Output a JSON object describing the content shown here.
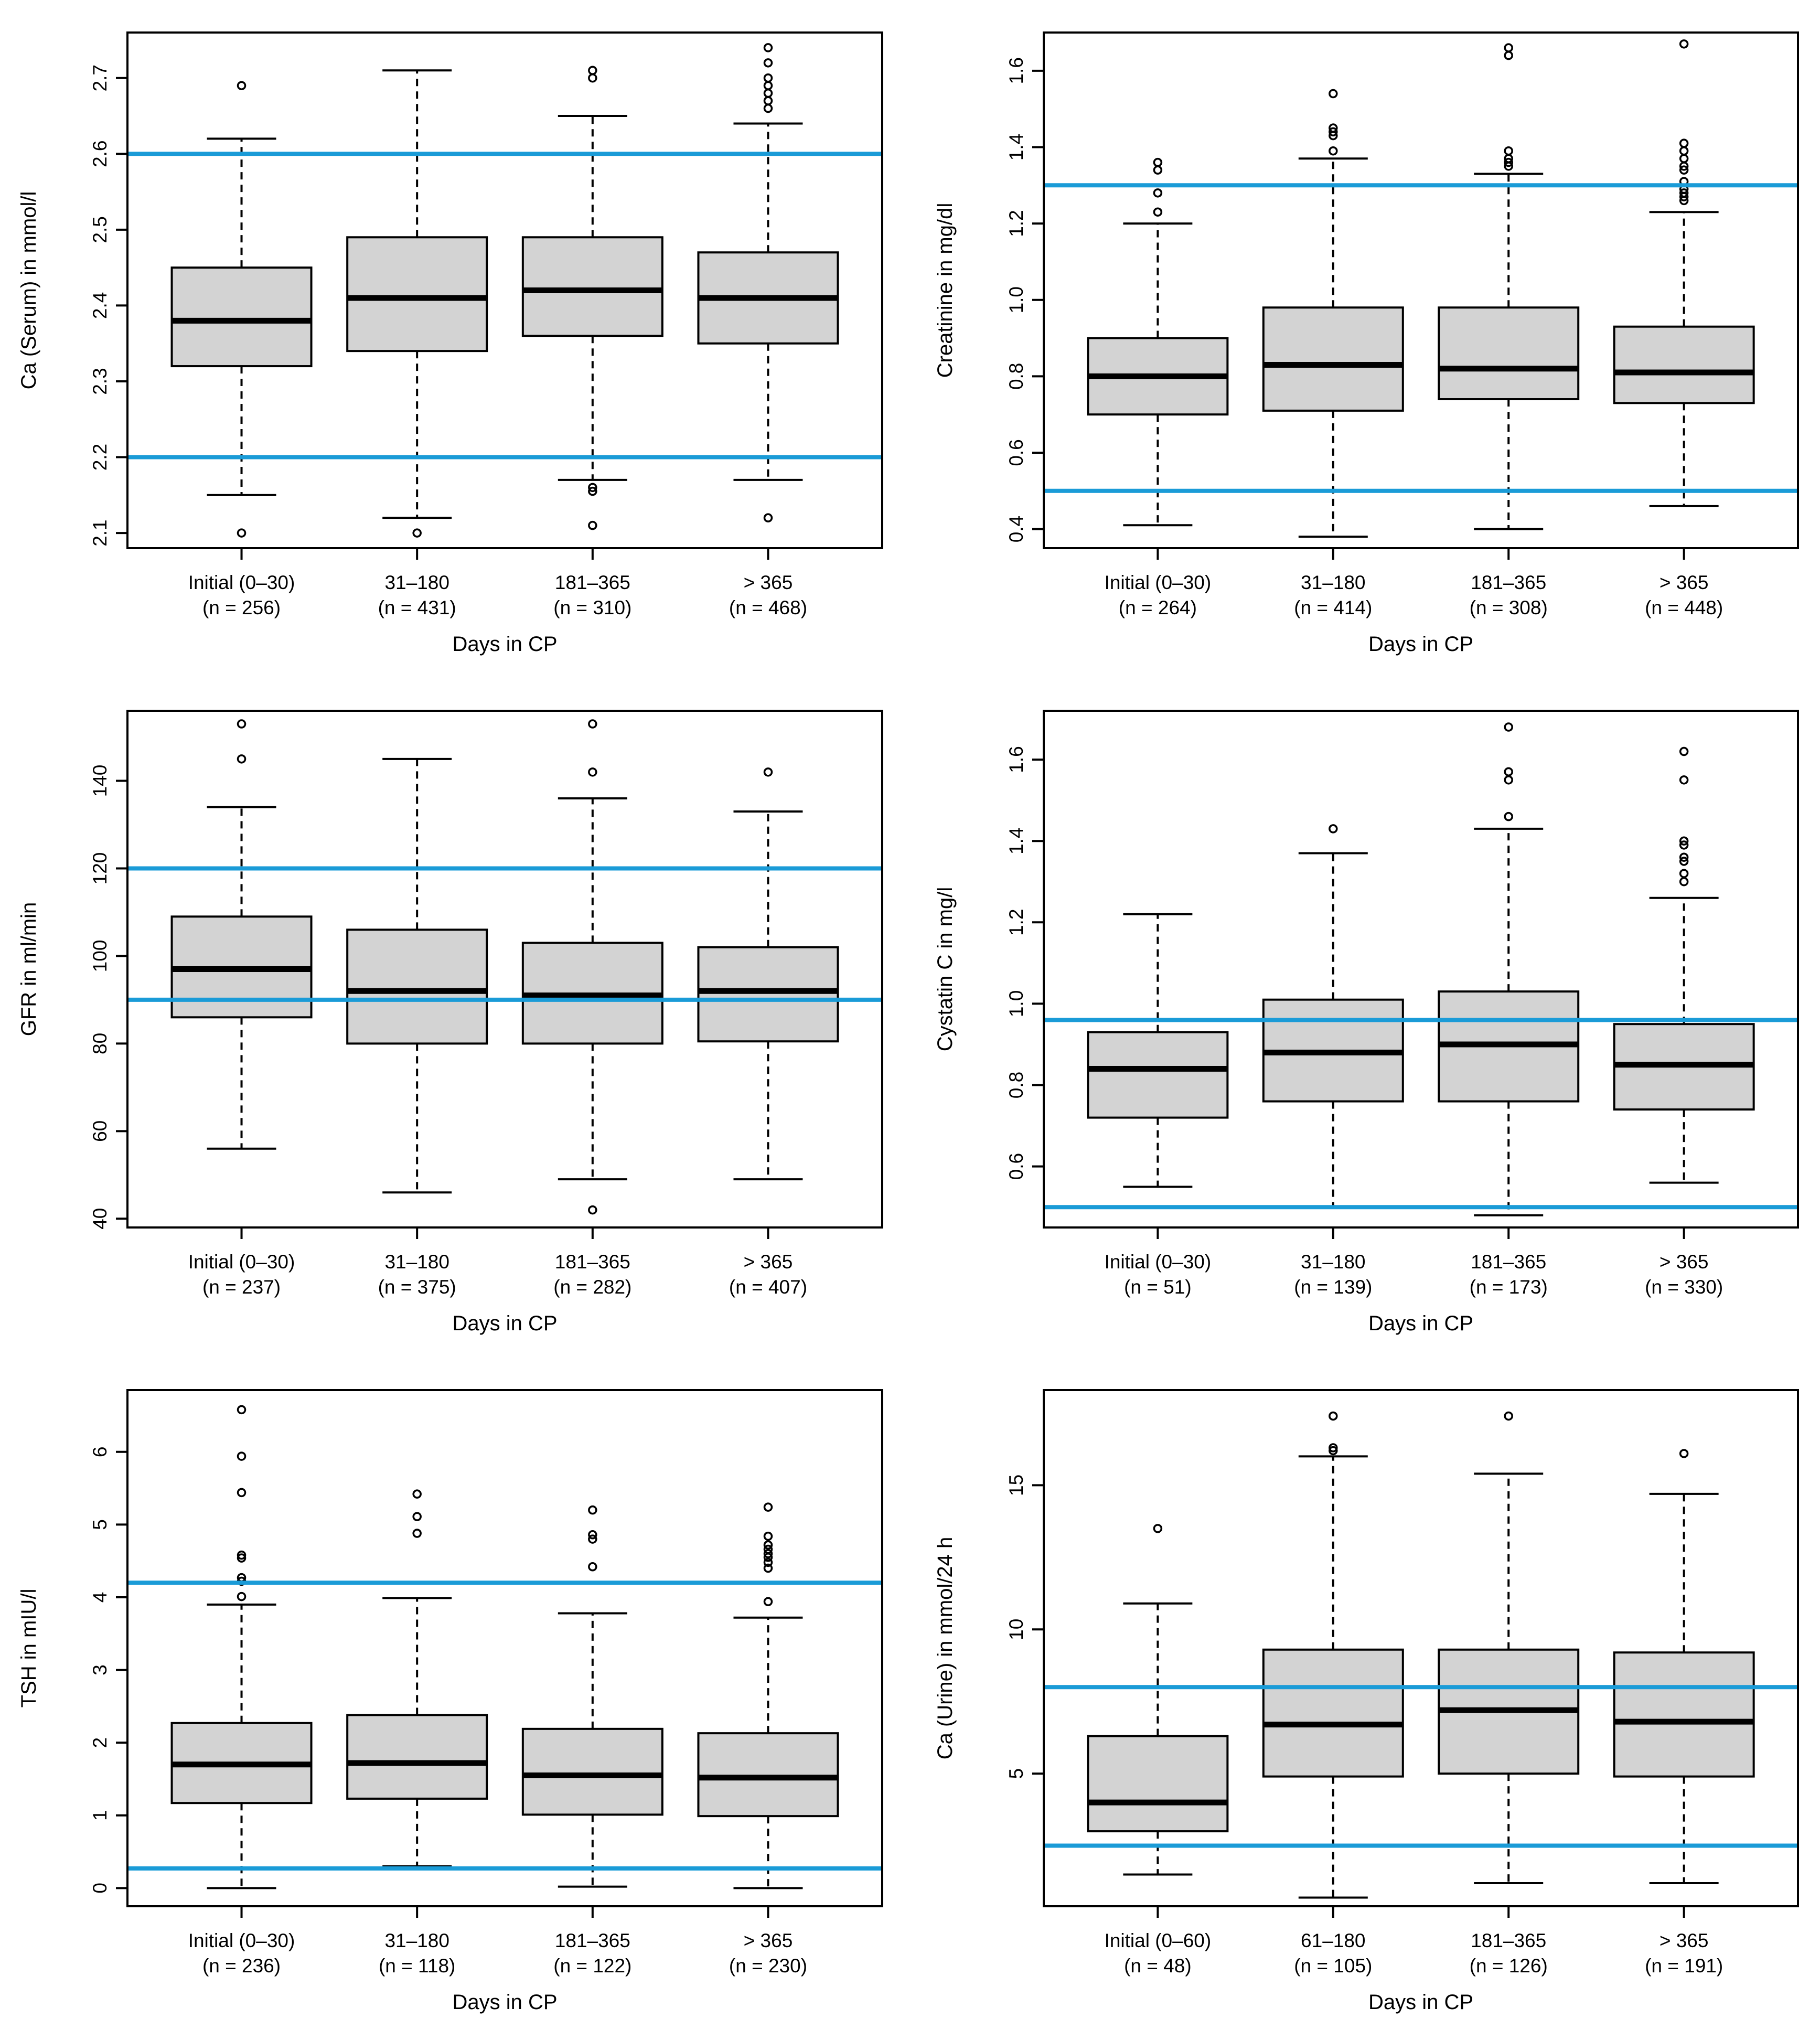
{
  "figure": {
    "colors": {
      "box_fill": "#d3d3d3",
      "box_stroke": "#000000",
      "ref_line": "#1a9bd7",
      "axis": "#000000"
    }
  },
  "chart_data": [
    {
      "type": "boxplot",
      "position": "top-left",
      "title": "",
      "xlabel": "Days in CP",
      "ylabel": "Ca (Serum) in mmol/l",
      "ylim": [
        2.08,
        2.76
      ],
      "yticks": [
        2.1,
        2.2,
        2.3,
        2.4,
        2.5,
        2.6,
        2.7
      ],
      "ytick_labels": [
        "2.1",
        "2.2",
        "2.3",
        "2.4",
        "2.5",
        "2.6",
        "2.7"
      ],
      "categories": [
        {
          "label": "Initial (0–30)",
          "n": "(n = 256)"
        },
        {
          "label": "31–180",
          "n": "(n = 431)"
        },
        {
          "label": "181–365",
          "n": "(n = 310)"
        },
        {
          "label": "> 365",
          "n": "(n = 468)"
        }
      ],
      "boxes": [
        {
          "whislo": 2.15,
          "q1": 2.32,
          "med": 2.38,
          "q3": 2.45,
          "whishi": 2.62,
          "fliers": [
            2.69,
            2.1
          ]
        },
        {
          "whislo": 2.12,
          "q1": 2.34,
          "med": 2.41,
          "q3": 2.49,
          "whishi": 2.71,
          "fliers": [
            2.1
          ]
        },
        {
          "whislo": 2.17,
          "q1": 2.36,
          "med": 2.42,
          "q3": 2.49,
          "whishi": 2.65,
          "fliers": [
            2.71,
            2.7,
            2.16,
            2.155,
            2.11
          ]
        },
        {
          "whislo": 2.17,
          "q1": 2.35,
          "med": 2.41,
          "q3": 2.47,
          "whishi": 2.64,
          "fliers": [
            2.74,
            2.72,
            2.7,
            2.69,
            2.68,
            2.67,
            2.66,
            2.12
          ]
        }
      ],
      "reference_lines": [
        2.2,
        2.6
      ]
    },
    {
      "type": "boxplot",
      "position": "top-right",
      "title": "",
      "xlabel": "Days in CP",
      "ylabel": "Creatinine in mg/dl",
      "ylim": [
        0.35,
        1.7
      ],
      "yticks": [
        0.4,
        0.6,
        0.8,
        1.0,
        1.2,
        1.4,
        1.6
      ],
      "ytick_labels": [
        "0.4",
        "0.6",
        "0.8",
        "1.0",
        "1.2",
        "1.4",
        "1.6"
      ],
      "categories": [
        {
          "label": "Initial (0–30)",
          "n": "(n = 264)"
        },
        {
          "label": "31–180",
          "n": "(n = 414)"
        },
        {
          "label": "181–365",
          "n": "(n = 308)"
        },
        {
          "label": "> 365",
          "n": "(n = 448)"
        }
      ],
      "boxes": [
        {
          "whislo": 0.41,
          "q1": 0.7,
          "med": 0.8,
          "q3": 0.9,
          "whishi": 1.2,
          "fliers": [
            1.36,
            1.34,
            1.28,
            1.23
          ]
        },
        {
          "whislo": 0.38,
          "q1": 0.71,
          "med": 0.83,
          "q3": 0.98,
          "whishi": 1.37,
          "fliers": [
            1.54,
            1.45,
            1.44,
            1.43,
            1.39
          ]
        },
        {
          "whislo": 0.4,
          "q1": 0.74,
          "med": 0.82,
          "q3": 0.98,
          "whishi": 1.33,
          "fliers": [
            1.66,
            1.64,
            1.39,
            1.37,
            1.36,
            1.35
          ]
        },
        {
          "whislo": 0.46,
          "q1": 0.73,
          "med": 0.81,
          "q3": 0.93,
          "whishi": 1.23,
          "fliers": [
            1.67,
            1.35,
            1.34,
            1.31,
            1.29,
            1.28,
            1.27,
            1.26,
            1.41,
            1.39,
            1.37
          ]
        }
      ],
      "reference_lines": [
        0.5,
        1.3
      ]
    },
    {
      "type": "boxplot",
      "position": "middle-left",
      "title": "",
      "xlabel": "Days in CP",
      "ylabel": "GFR in ml/min",
      "ylim": [
        38,
        156
      ],
      "yticks": [
        40,
        60,
        80,
        100,
        120,
        140
      ],
      "ytick_labels": [
        "40",
        "60",
        "80",
        "100",
        "120",
        "140"
      ],
      "categories": [
        {
          "label": "Initial (0–30)",
          "n": "(n = 237)"
        },
        {
          "label": "31–180",
          "n": "(n = 375)"
        },
        {
          "label": "181–365",
          "n": "(n = 282)"
        },
        {
          "label": "> 365",
          "n": "(n = 407)"
        }
      ],
      "boxes": [
        {
          "whislo": 56,
          "q1": 86,
          "med": 97,
          "q3": 109,
          "whishi": 134,
          "fliers": [
            153,
            145
          ]
        },
        {
          "whislo": 46,
          "q1": 80,
          "med": 92,
          "q3": 106,
          "whishi": 145,
          "fliers": []
        },
        {
          "whislo": 49,
          "q1": 80,
          "med": 91,
          "q3": 103,
          "whishi": 136,
          "fliers": [
            153,
            142,
            42
          ]
        },
        {
          "whislo": 49,
          "q1": 80.5,
          "med": 92,
          "q3": 102,
          "whishi": 133,
          "fliers": [
            142
          ]
        }
      ],
      "reference_lines": [
        90,
        120
      ]
    },
    {
      "type": "boxplot",
      "position": "middle-right",
      "title": "",
      "xlabel": "Days in CP",
      "ylabel": "Cystatin C in mg/l",
      "ylim": [
        0.45,
        1.72
      ],
      "yticks": [
        0.6,
        0.8,
        1.0,
        1.2,
        1.4,
        1.6
      ],
      "ytick_labels": [
        "0.6",
        "0.8",
        "1.0",
        "1.2",
        "1.4",
        "1.6"
      ],
      "categories": [
        {
          "label": "Initial (0–30)",
          "n": "(n = 51)"
        },
        {
          "label": "31–180",
          "n": "(n = 139)"
        },
        {
          "label": "181–365",
          "n": "(n = 173)"
        },
        {
          "label": "> 365",
          "n": "(n = 330)"
        }
      ],
      "boxes": [
        {
          "whislo": 0.55,
          "q1": 0.72,
          "med": 0.84,
          "q3": 0.93,
          "whishi": 1.22,
          "fliers": []
        },
        {
          "whislo": 0.5,
          "q1": 0.76,
          "med": 0.88,
          "q3": 1.01,
          "whishi": 1.37,
          "fliers": [
            1.43
          ]
        },
        {
          "whislo": 0.48,
          "q1": 0.76,
          "med": 0.9,
          "q3": 1.03,
          "whishi": 1.43,
          "fliers": [
            1.68,
            1.57,
            1.55,
            1.46
          ]
        },
        {
          "whislo": 0.56,
          "q1": 0.74,
          "med": 0.85,
          "q3": 0.95,
          "whishi": 1.26,
          "fliers": [
            1.62,
            1.55,
            1.4,
            1.39,
            1.36,
            1.35,
            1.32,
            1.3
          ]
        }
      ],
      "reference_lines": [
        0.5,
        0.96
      ]
    },
    {
      "type": "boxplot",
      "position": "bottom-left",
      "title": "",
      "xlabel": "Days in CP",
      "ylabel": "TSH in mIU/l",
      "ylim": [
        -0.25,
        6.85
      ],
      "yticks": [
        0,
        1,
        2,
        3,
        4,
        5,
        6
      ],
      "ytick_labels": [
        "0",
        "1",
        "2",
        "3",
        "4",
        "5",
        "6"
      ],
      "categories": [
        {
          "label": "Initial (0–30)",
          "n": "(n = 236)"
        },
        {
          "label": "31–180",
          "n": "(n = 118)"
        },
        {
          "label": "181–365",
          "n": "(n = 122)"
        },
        {
          "label": "> 365",
          "n": "(n = 230)"
        }
      ],
      "boxes": [
        {
          "whislo": 0.0,
          "q1": 1.17,
          "med": 1.7,
          "q3": 2.27,
          "whishi": 3.9,
          "fliers": [
            6.58,
            5.94,
            5.44,
            4.58,
            4.54,
            4.27,
            4.22,
            4.01
          ]
        },
        {
          "whislo": 0.3,
          "q1": 1.23,
          "med": 1.72,
          "q3": 2.38,
          "whishi": 3.99,
          "fliers": [
            5.42,
            5.11,
            4.88
          ]
        },
        {
          "whislo": 0.02,
          "q1": 1.01,
          "med": 1.55,
          "q3": 2.19,
          "whishi": 3.78,
          "fliers": [
            5.2,
            4.86,
            4.8,
            4.42
          ]
        },
        {
          "whislo": 0.0,
          "q1": 0.99,
          "med": 1.52,
          "q3": 2.13,
          "whishi": 3.72,
          "fliers": [
            5.24,
            4.84,
            4.72,
            4.66,
            4.6,
            4.55,
            4.48,
            4.4,
            3.94
          ]
        }
      ],
      "reference_lines": [
        0.27,
        4.2
      ]
    },
    {
      "type": "boxplot",
      "position": "bottom-right",
      "title": "",
      "xlabel": "Days in CP",
      "ylabel": "Ca (Urine) in mmol/24 h",
      "ylim": [
        0.4,
        18.3
      ],
      "yticks": [
        5,
        10,
        15
      ],
      "ytick_labels": [
        "5",
        "10",
        "15"
      ],
      "categories": [
        {
          "label": "Initial (0–60)",
          "n": "(n = 48)"
        },
        {
          "label": "61–180",
          "n": "(n = 105)"
        },
        {
          "label": "181–365",
          "n": "(n = 126)"
        },
        {
          "label": "> 365",
          "n": "(n = 191)"
        }
      ],
      "boxes": [
        {
          "whislo": 1.5,
          "q1": 3.0,
          "med": 4.0,
          "q3": 6.3,
          "whishi": 10.9,
          "fliers": [
            13.5
          ]
        },
        {
          "whislo": 0.7,
          "q1": 4.9,
          "med": 6.7,
          "q3": 9.3,
          "whishi": 16.0,
          "fliers": [
            17.4,
            16.3,
            16.2
          ]
        },
        {
          "whislo": 1.2,
          "q1": 5.0,
          "med": 7.2,
          "q3": 9.3,
          "whishi": 15.4,
          "fliers": [
            17.4
          ]
        },
        {
          "whislo": 1.2,
          "q1": 4.9,
          "med": 6.8,
          "q3": 9.2,
          "whishi": 14.7,
          "fliers": [
            16.1
          ]
        }
      ],
      "reference_lines": [
        2.5,
        8.0
      ]
    }
  ]
}
